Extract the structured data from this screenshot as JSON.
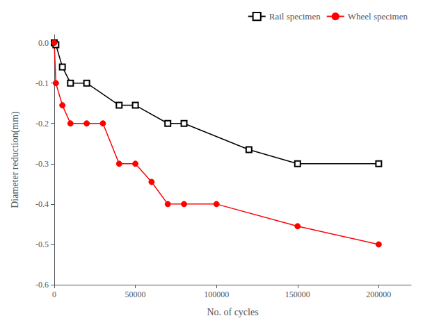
{
  "chart_data": {
    "type": "line",
    "xlabel": "No. of cycles",
    "ylabel": "Diameter reduction(mm)",
    "series": [
      {
        "name": "Rail specimen",
        "color": "#000000",
        "marker": "square",
        "x": [
          0,
          1000,
          5000,
          10000,
          20000,
          40000,
          50000,
          70000,
          80000,
          120000,
          150000,
          200000
        ],
        "values": [
          0.0,
          -0.005,
          -0.06,
          -0.1,
          -0.1,
          -0.155,
          -0.155,
          -0.2,
          -0.2,
          -0.265,
          -0.3,
          -0.3
        ]
      },
      {
        "name": "Wheel specimen",
        "color": "#ff0000",
        "marker": "circle",
        "x": [
          0,
          1000,
          5000,
          10000,
          20000,
          30000,
          40000,
          50000,
          60000,
          70000,
          80000,
          100000,
          150000,
          200000
        ],
        "values": [
          0.0,
          -0.1,
          -0.155,
          -0.2,
          -0.2,
          -0.2,
          -0.3,
          -0.3,
          -0.345,
          -0.4,
          -0.4,
          -0.4,
          -0.455,
          -0.5
        ]
      }
    ],
    "xlim": [
      0,
      220000
    ],
    "ylim": [
      -0.6,
      0.02
    ],
    "xticks": [
      0,
      50000,
      100000,
      150000,
      200000
    ],
    "yticks": [
      {
        "value": 0.0,
        "label": "0.0"
      },
      -0.1,
      -0.2,
      -0.3,
      -0.4,
      -0.5,
      -0.6
    ],
    "grid": false,
    "legend": "upper right"
  }
}
